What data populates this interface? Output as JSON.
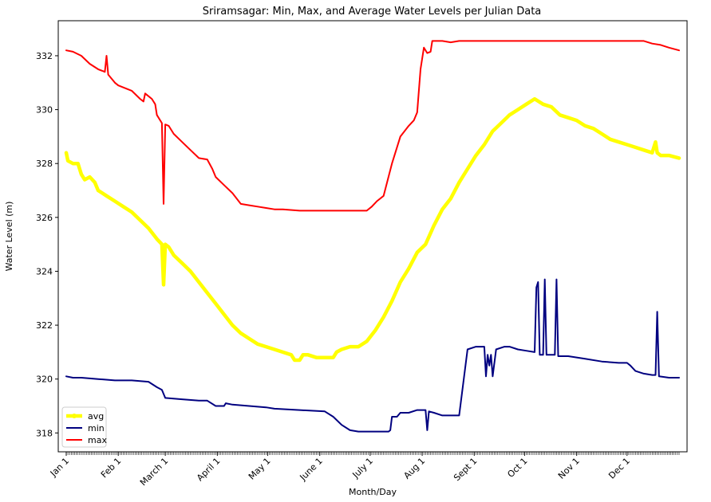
{
  "chart_data": {
    "type": "line",
    "title": "Sriramsagar: Min, Max, and Average Water Levels per Julian Data",
    "xlabel": "Month/Day",
    "ylabel": "Water Level (m)",
    "x_range": [
      1,
      366
    ],
    "ylim": [
      317.3,
      333.3
    ],
    "yticks": [
      318,
      320,
      322,
      324,
      326,
      328,
      330,
      332
    ],
    "xticks": [
      {
        "day": 1,
        "label": "Jan 1"
      },
      {
        "day": 32,
        "label": "Feb 1"
      },
      {
        "day": 60,
        "label": "March 1"
      },
      {
        "day": 91,
        "label": "April 1"
      },
      {
        "day": 121,
        "label": "May 1"
      },
      {
        "day": 152,
        "label": "June 1"
      },
      {
        "day": 182,
        "label": "July 1"
      },
      {
        "day": 213,
        "label": "Aug 1"
      },
      {
        "day": 244,
        "label": "Sept 1"
      },
      {
        "day": 274,
        "label": "Oct 1"
      },
      {
        "day": 305,
        "label": "Nov 1"
      },
      {
        "day": 335,
        "label": "Dec 1"
      }
    ],
    "legend": {
      "position": "lower-left"
    },
    "series": [
      {
        "name": "avg",
        "color": "#ffff00",
        "width": 4.5,
        "points": [
          [
            1,
            328.4
          ],
          [
            2,
            328.1
          ],
          [
            5,
            328.0
          ],
          [
            8,
            328.0
          ],
          [
            9,
            327.8
          ],
          [
            10,
            327.6
          ],
          [
            12,
            327.4
          ],
          [
            15,
            327.5
          ],
          [
            18,
            327.3
          ],
          [
            20,
            327.0
          ],
          [
            25,
            326.8
          ],
          [
            30,
            326.6
          ],
          [
            35,
            326.4
          ],
          [
            40,
            326.2
          ],
          [
            45,
            325.9
          ],
          [
            50,
            325.6
          ],
          [
            55,
            325.2
          ],
          [
            58,
            325.0
          ],
          [
            59,
            323.5
          ],
          [
            60,
            325.0
          ],
          [
            62,
            324.9
          ],
          [
            65,
            324.6
          ],
          [
            70,
            324.3
          ],
          [
            75,
            324.0
          ],
          [
            80,
            323.6
          ],
          [
            85,
            323.2
          ],
          [
            90,
            322.8
          ],
          [
            95,
            322.4
          ],
          [
            100,
            322.0
          ],
          [
            105,
            321.7
          ],
          [
            110,
            321.5
          ],
          [
            115,
            321.3
          ],
          [
            120,
            321.2
          ],
          [
            125,
            321.1
          ],
          [
            130,
            321.0
          ],
          [
            135,
            320.9
          ],
          [
            137,
            320.7
          ],
          [
            140,
            320.7
          ],
          [
            142,
            320.9
          ],
          [
            145,
            320.9
          ],
          [
            150,
            320.8
          ],
          [
            160,
            320.8
          ],
          [
            162,
            321.0
          ],
          [
            165,
            321.1
          ],
          [
            170,
            321.2
          ],
          [
            175,
            321.2
          ],
          [
            180,
            321.4
          ],
          [
            185,
            321.8
          ],
          [
            190,
            322.3
          ],
          [
            195,
            322.9
          ],
          [
            200,
            323.6
          ],
          [
            205,
            324.1
          ],
          [
            210,
            324.7
          ],
          [
            215,
            325.0
          ],
          [
            220,
            325.7
          ],
          [
            225,
            326.3
          ],
          [
            230,
            326.7
          ],
          [
            235,
            327.3
          ],
          [
            240,
            327.8
          ],
          [
            245,
            328.3
          ],
          [
            250,
            328.7
          ],
          [
            255,
            329.2
          ],
          [
            260,
            329.5
          ],
          [
            265,
            329.8
          ],
          [
            270,
            330.0
          ],
          [
            275,
            330.2
          ],
          [
            280,
            330.4
          ],
          [
            285,
            330.2
          ],
          [
            290,
            330.1
          ],
          [
            295,
            329.8
          ],
          [
            300,
            329.7
          ],
          [
            305,
            329.6
          ],
          [
            310,
            329.4
          ],
          [
            315,
            329.3
          ],
          [
            320,
            329.1
          ],
          [
            325,
            328.9
          ],
          [
            330,
            328.8
          ],
          [
            335,
            328.7
          ],
          [
            340,
            328.6
          ],
          [
            345,
            328.5
          ],
          [
            350,
            328.4
          ],
          [
            352,
            328.8
          ],
          [
            353,
            328.4
          ],
          [
            355,
            328.3
          ],
          [
            360,
            328.3
          ],
          [
            366,
            328.2
          ]
        ]
      },
      {
        "name": "min",
        "color": "#000080",
        "width": 2,
        "points": [
          [
            1,
            320.1
          ],
          [
            5,
            320.05
          ],
          [
            10,
            320.05
          ],
          [
            20,
            320.0
          ],
          [
            30,
            319.95
          ],
          [
            40,
            319.95
          ],
          [
            50,
            319.9
          ],
          [
            55,
            319.7
          ],
          [
            58,
            319.6
          ],
          [
            60,
            319.3
          ],
          [
            70,
            319.25
          ],
          [
            80,
            319.2
          ],
          [
            85,
            319.2
          ],
          [
            90,
            319.0
          ],
          [
            95,
            319.0
          ],
          [
            96,
            319.1
          ],
          [
            100,
            319.05
          ],
          [
            110,
            319.0
          ],
          [
            120,
            318.95
          ],
          [
            125,
            318.9
          ],
          [
            140,
            318.85
          ],
          [
            155,
            318.8
          ],
          [
            160,
            318.6
          ],
          [
            165,
            318.3
          ],
          [
            170,
            318.1
          ],
          [
            175,
            318.05
          ],
          [
            185,
            318.05
          ],
          [
            193,
            318.05
          ],
          [
            194,
            318.1
          ],
          [
            195,
            318.6
          ],
          [
            198,
            318.6
          ],
          [
            200,
            318.75
          ],
          [
            205,
            318.75
          ],
          [
            210,
            318.85
          ],
          [
            215,
            318.85
          ],
          [
            216,
            318.1
          ],
          [
            217,
            318.8
          ],
          [
            220,
            318.75
          ],
          [
            225,
            318.65
          ],
          [
            235,
            318.65
          ],
          [
            240,
            321.1
          ],
          [
            245,
            321.2
          ],
          [
            250,
            321.2
          ],
          [
            251,
            320.1
          ],
          [
            252,
            320.9
          ],
          [
            253,
            320.5
          ],
          [
            254,
            320.9
          ],
          [
            255,
            320.1
          ],
          [
            257,
            321.1
          ],
          [
            262,
            321.2
          ],
          [
            265,
            321.2
          ],
          [
            270,
            321.1
          ],
          [
            275,
            321.05
          ],
          [
            280,
            321.0
          ],
          [
            281,
            323.4
          ],
          [
            282,
            323.6
          ],
          [
            283,
            320.9
          ],
          [
            285,
            320.9
          ],
          [
            286,
            323.7
          ],
          [
            287,
            320.9
          ],
          [
            292,
            320.9
          ],
          [
            293,
            323.7
          ],
          [
            294,
            320.85
          ],
          [
            300,
            320.85
          ],
          [
            310,
            320.75
          ],
          [
            320,
            320.65
          ],
          [
            330,
            320.6
          ],
          [
            335,
            320.6
          ],
          [
            337,
            320.5
          ],
          [
            340,
            320.3
          ],
          [
            345,
            320.2
          ],
          [
            350,
            320.15
          ],
          [
            352,
            320.15
          ],
          [
            353,
            322.5
          ],
          [
            354,
            320.1
          ],
          [
            360,
            320.05
          ],
          [
            366,
            320.05
          ]
        ]
      },
      {
        "name": "max",
        "color": "#ff0000",
        "width": 2,
        "points": [
          [
            1,
            332.2
          ],
          [
            5,
            332.15
          ],
          [
            10,
            332.0
          ],
          [
            15,
            331.7
          ],
          [
            20,
            331.5
          ],
          [
            24,
            331.4
          ],
          [
            25,
            332.0
          ],
          [
            26,
            331.3
          ],
          [
            30,
            331.0
          ],
          [
            32,
            330.9
          ],
          [
            40,
            330.7
          ],
          [
            45,
            330.4
          ],
          [
            47,
            330.3
          ],
          [
            48,
            330.6
          ],
          [
            52,
            330.4
          ],
          [
            54,
            330.2
          ],
          [
            55,
            329.8
          ],
          [
            58,
            329.5
          ],
          [
            59,
            326.5
          ],
          [
            60,
            329.45
          ],
          [
            62,
            329.4
          ],
          [
            65,
            329.1
          ],
          [
            70,
            328.8
          ],
          [
            75,
            328.5
          ],
          [
            80,
            328.2
          ],
          [
            85,
            328.15
          ],
          [
            88,
            327.8
          ],
          [
            90,
            327.5
          ],
          [
            95,
            327.2
          ],
          [
            100,
            326.9
          ],
          [
            105,
            326.5
          ],
          [
            110,
            326.45
          ],
          [
            115,
            326.4
          ],
          [
            120,
            326.35
          ],
          [
            125,
            326.3
          ],
          [
            130,
            326.3
          ],
          [
            140,
            326.25
          ],
          [
            150,
            326.25
          ],
          [
            160,
            326.25
          ],
          [
            180,
            326.25
          ],
          [
            183,
            326.4
          ],
          [
            186,
            326.6
          ],
          [
            190,
            326.8
          ],
          [
            195,
            328.0
          ],
          [
            200,
            329.0
          ],
          [
            205,
            329.4
          ],
          [
            208,
            329.6
          ],
          [
            210,
            329.9
          ],
          [
            212,
            331.5
          ],
          [
            214,
            332.3
          ],
          [
            216,
            332.1
          ],
          [
            218,
            332.15
          ],
          [
            219,
            332.55
          ],
          [
            221,
            332.55
          ],
          [
            225,
            332.55
          ],
          [
            230,
            332.5
          ],
          [
            235,
            332.55
          ],
          [
            345,
            332.55
          ],
          [
            350,
            332.45
          ],
          [
            355,
            332.4
          ],
          [
            360,
            332.3
          ],
          [
            366,
            332.2
          ]
        ]
      }
    ]
  }
}
